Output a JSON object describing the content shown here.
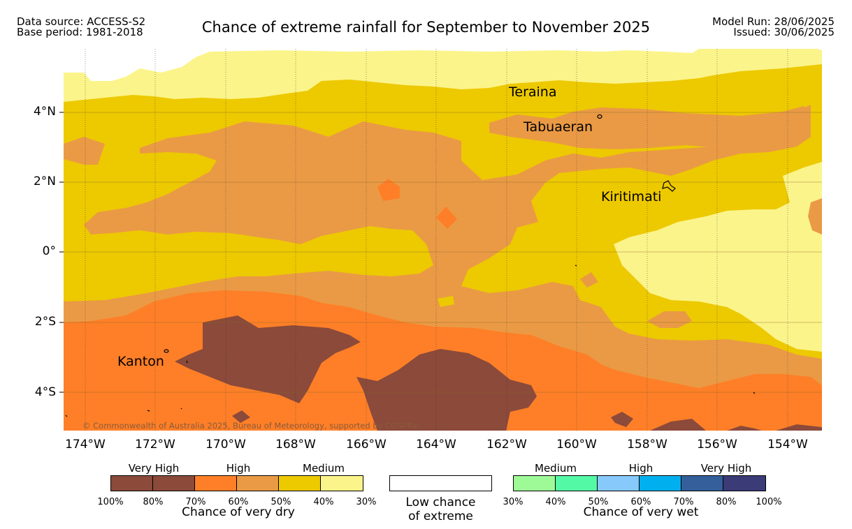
{
  "header": {
    "source_line1": "Data source: ACCESS-S2",
    "source_line2": "Base period: 1981-2018",
    "title": "Chance of extreme rainfall for September to November 2025",
    "run_line1": "Model Run: 28/06/2025",
    "run_line2": "Issued: 30/06/2025"
  },
  "map": {
    "lat_labels": [
      "4°N",
      "2°N",
      "0°",
      "2°S",
      "4°S"
    ],
    "lon_labels": [
      "174°W",
      "172°W",
      "170°W",
      "168°W",
      "166°W",
      "164°W",
      "162°W",
      "160°W",
      "158°W",
      "156°W",
      "154°W"
    ],
    "places": [
      "Teraina",
      "Tabuaeran",
      "Kiritimati",
      "Kanton"
    ],
    "credit": "© Commonwealth of Australia 2025, Bureau of Meteorology, supported by COSPPac"
  },
  "legend": {
    "dry": {
      "categories": [
        "Very High",
        "High",
        "Medium"
      ],
      "percents": [
        "100%",
        "80%",
        "70%",
        "60%",
        "50%",
        "40%",
        "30%"
      ],
      "colors": [
        "#8b4a3a",
        "#8b4a3a",
        "#fe7f27",
        "#ea9a45",
        "#edc900",
        "#fbf48a"
      ],
      "caption": "Chance of very dry"
    },
    "neutral": {
      "caption_line1": "Low chance",
      "caption_line2": "of extreme"
    },
    "wet": {
      "categories": [
        "Medium",
        "High",
        "Very High"
      ],
      "percents": [
        "30%",
        "40%",
        "50%",
        "60%",
        "70%",
        "80%",
        "100%"
      ],
      "colors": [
        "#9efa96",
        "#54f9a6",
        "#86c9fa",
        "#00b0ee",
        "#345f9b",
        "#3b3b78"
      ],
      "caption": "Chance of very wet"
    }
  }
}
